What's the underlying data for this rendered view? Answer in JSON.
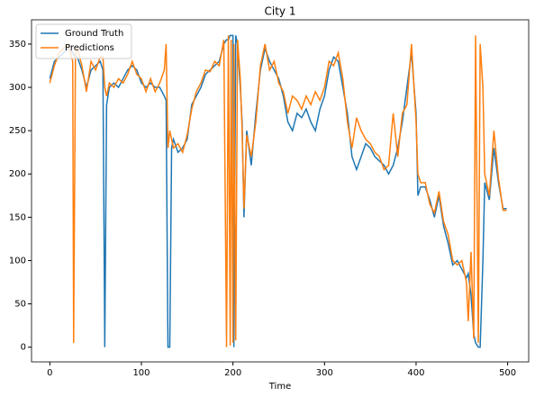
{
  "chart_data": {
    "type": "line",
    "title": "City 1",
    "x_label": "Time",
    "x": [
      0,
      5,
      10,
      15,
      20,
      25,
      26,
      28,
      30,
      35,
      40,
      45,
      50,
      55,
      58,
      60,
      62,
      65,
      70,
      75,
      80,
      85,
      90,
      95,
      100,
      105,
      110,
      115,
      120,
      125,
      127,
      129,
      131,
      133,
      135,
      140,
      145,
      150,
      155,
      160,
      165,
      170,
      175,
      180,
      185,
      190,
      193,
      195,
      197,
      198,
      200,
      201,
      203,
      205,
      208,
      210,
      212,
      215,
      220,
      225,
      230,
      235,
      240,
      245,
      250,
      255,
      260,
      265,
      270,
      275,
      280,
      285,
      290,
      295,
      300,
      305,
      310,
      315,
      320,
      325,
      330,
      335,
      340,
      345,
      350,
      355,
      360,
      365,
      370,
      375,
      380,
      385,
      390,
      395,
      400,
      402,
      405,
      410,
      415,
      420,
      425,
      430,
      435,
      440,
      445,
      450,
      455,
      457,
      460,
      463,
      465,
      468,
      470,
      473,
      475,
      480,
      485,
      490,
      495,
      499
    ],
    "series": [
      {
        "name": "Ground Truth",
        "color": "#1f77b4",
        "values": [
          310,
          330,
          335,
          340,
          345,
          340,
          338,
          335,
          335,
          320,
          300,
          320,
          325,
          330,
          320,
          0,
          280,
          300,
          305,
          300,
          310,
          320,
          325,
          320,
          305,
          300,
          305,
          300,
          300,
          290,
          285,
          0,
          0,
          230,
          240,
          225,
          230,
          240,
          280,
          290,
          300,
          315,
          320,
          325,
          330,
          350,
          355,
          355,
          360,
          360,
          360,
          0,
          360,
          350,
          300,
          260,
          150,
          250,
          210,
          270,
          320,
          345,
          330,
          320,
          310,
          290,
          260,
          250,
          270,
          265,
          275,
          260,
          250,
          275,
          290,
          320,
          335,
          330,
          300,
          270,
          220,
          205,
          220,
          235,
          230,
          220,
          215,
          210,
          200,
          210,
          230,
          260,
          300,
          340,
          270,
          175,
          185,
          185,
          170,
          150,
          175,
          140,
          120,
          95,
          100,
          90,
          80,
          85,
          60,
          15,
          5,
          0,
          0,
          100,
          190,
          170,
          230,
          190,
          160,
          160
        ]
      },
      {
        "name": "Predictions",
        "color": "#ff7f0e",
        "values": [
          305,
          325,
          340,
          345,
          350,
          330,
          5,
          340,
          345,
          325,
          295,
          330,
          320,
          335,
          335,
          300,
          290,
          305,
          300,
          310,
          305,
          315,
          330,
          315,
          310,
          295,
          310,
          295,
          305,
          320,
          350,
          230,
          250,
          240,
          230,
          235,
          225,
          245,
          275,
          295,
          305,
          320,
          318,
          330,
          325,
          355,
          0,
          360,
          2,
          355,
          5,
          350,
          8,
          355,
          310,
          250,
          160,
          245,
          220,
          260,
          325,
          350,
          320,
          330,
          305,
          295,
          270,
          290,
          285,
          275,
          290,
          280,
          295,
          285,
          300,
          330,
          325,
          340,
          310,
          260,
          230,
          265,
          250,
          240,
          235,
          225,
          220,
          205,
          210,
          270,
          220,
          270,
          280,
          350,
          260,
          200,
          190,
          190,
          165,
          155,
          180,
          145,
          130,
          100,
          95,
          100,
          75,
          30,
          110,
          10,
          360,
          5,
          350,
          300,
          200,
          175,
          250,
          195,
          158,
          158
        ]
      }
    ],
    "xlim": [
      -20,
      523
    ],
    "xticks": [
      0,
      100,
      200,
      300,
      400,
      500
    ],
    "ylim": [
      -17,
      378
    ],
    "yticks": [
      0,
      50,
      100,
      150,
      200,
      250,
      300,
      350
    ],
    "legend": "upper left"
  }
}
